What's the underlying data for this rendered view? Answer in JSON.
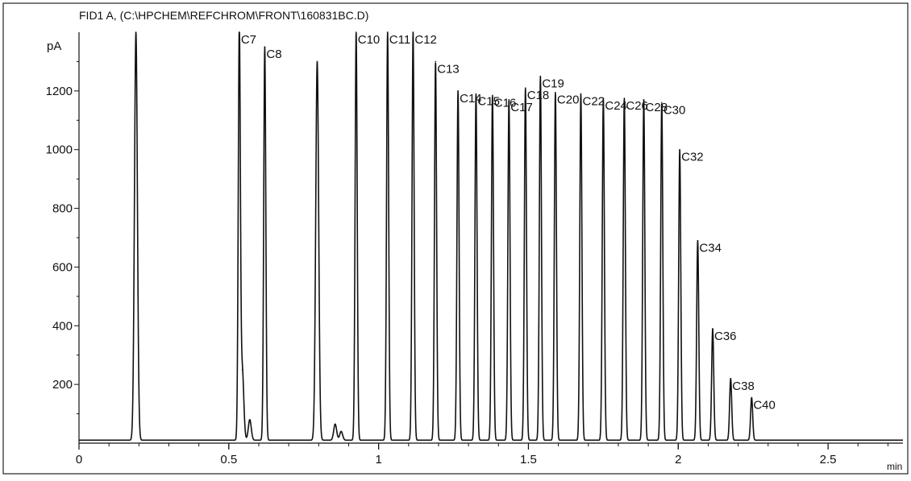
{
  "chart_data": {
    "type": "line",
    "title": "FID1 A, (C:\\HPCHEM\\REFCHROM\\FRONT\\160831BC.D)",
    "ylabel": "pA",
    "xlabel": "min",
    "xlim": [
      0,
      2.75
    ],
    "ylim": [
      0,
      1400
    ],
    "grid": false,
    "legend": "none",
    "x_ticks": [
      {
        "value": 0,
        "label": "0"
      },
      {
        "value": 0.5,
        "label": "0.5"
      },
      {
        "value": 1,
        "label": "1"
      },
      {
        "value": 1.5,
        "label": "1.5"
      },
      {
        "value": 2,
        "label": "2"
      },
      {
        "value": 2.5,
        "label": "2.5"
      }
    ],
    "y_ticks": [
      {
        "value": 200,
        "label": "200"
      },
      {
        "value": 400,
        "label": "400"
      },
      {
        "value": 600,
        "label": "600"
      },
      {
        "value": 800,
        "label": "800"
      },
      {
        "value": 1000,
        "label": "1000"
      },
      {
        "value": 1200,
        "label": "1200"
      }
    ],
    "baseline": 10,
    "peaks": [
      {
        "x": 0.19,
        "y": 1400,
        "label": ""
      },
      {
        "x": 0.535,
        "y": 1400,
        "label": "C7"
      },
      {
        "x": 0.545,
        "y": 250,
        "label": ""
      },
      {
        "x": 0.57,
        "y": 80,
        "label": ""
      },
      {
        "x": 0.62,
        "y": 1350,
        "label": "C8"
      },
      {
        "x": 0.795,
        "y": 1300,
        "label": ""
      },
      {
        "x": 0.855,
        "y": 65,
        "label": ""
      },
      {
        "x": 0.875,
        "y": 40,
        "label": ""
      },
      {
        "x": 0.925,
        "y": 1400,
        "label": "C10"
      },
      {
        "x": 1.03,
        "y": 1400,
        "label": "C11"
      },
      {
        "x": 1.115,
        "y": 1400,
        "label": "C12"
      },
      {
        "x": 1.19,
        "y": 1300,
        "label": "C13"
      },
      {
        "x": 1.265,
        "y": 1200,
        "label": "C14"
      },
      {
        "x": 1.325,
        "y": 1190,
        "label": "C15"
      },
      {
        "x": 1.38,
        "y": 1185,
        "label": "C16"
      },
      {
        "x": 1.435,
        "y": 1170,
        "label": "C17"
      },
      {
        "x": 1.49,
        "y": 1210,
        "label": "C18"
      },
      {
        "x": 1.54,
        "y": 1250,
        "label": "C19"
      },
      {
        "x": 1.59,
        "y": 1195,
        "label": "C20"
      },
      {
        "x": 1.675,
        "y": 1190,
        "label": "C22"
      },
      {
        "x": 1.75,
        "y": 1175,
        "label": "C24"
      },
      {
        "x": 1.82,
        "y": 1175,
        "label": "C26"
      },
      {
        "x": 1.885,
        "y": 1170,
        "label": "C28"
      },
      {
        "x": 1.945,
        "y": 1160,
        "label": "C30"
      },
      {
        "x": 2.005,
        "y": 1000,
        "label": "C32"
      },
      {
        "x": 2.065,
        "y": 690,
        "label": "C34"
      },
      {
        "x": 2.115,
        "y": 390,
        "label": "C36"
      },
      {
        "x": 2.175,
        "y": 220,
        "label": "C38"
      },
      {
        "x": 2.245,
        "y": 155,
        "label": "C40"
      }
    ]
  }
}
